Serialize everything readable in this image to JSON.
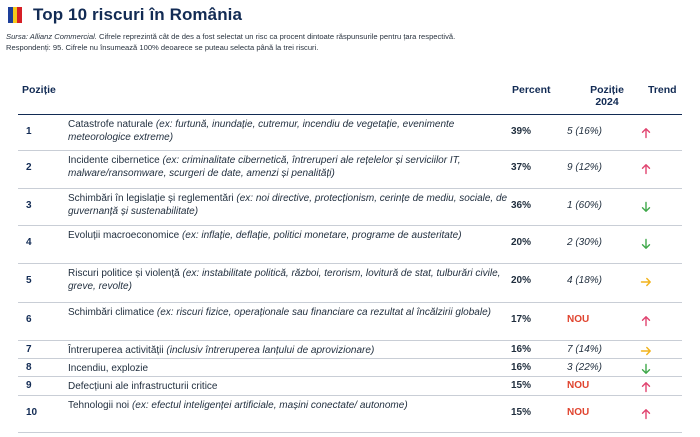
{
  "header": {
    "title": "Top 10 riscuri în România",
    "flag_colors": [
      "#1d3f9a",
      "#f6c91b",
      "#d61f26"
    ],
    "source_label": "Sursa: Allianz Commercial.",
    "source_text": " Cifrele reprezintă cât de des a fost selectat un risc ca procent dintoate răspunsurile pentru țara respectivă.",
    "respondents": "Respondenți: 95. Cifrele nu însumează 100% deoarece se puteau selecta până la trei riscuri."
  },
  "table": {
    "headers": {
      "position": "Poziție",
      "percent": "Percent",
      "position_2024_line1": "Poziție",
      "position_2024_line2": "2024",
      "trend": "Trend"
    },
    "rows": [
      {
        "rank": "1",
        "name": "Catastrofe naturale",
        "example": " (ex: furtună, inundație, cutremur, incendiu de vegetație, evenimente meteorologice extreme)",
        "percent": "39%",
        "pos2024": "5 (16%)",
        "trend": "up"
      },
      {
        "rank": "2",
        "name": "Incidente cibernetice",
        "example": " (ex: criminalitate cibernetică, întreruperi ale rețelelor și serviciilor IT, malware/ransomware, scurgeri de date, amenzi și penalități)",
        "percent": "37%",
        "pos2024": "9 (12%)",
        "trend": "up"
      },
      {
        "rank": "3",
        "name": "Schimbări în legislație și reglementări",
        "example": " (ex: noi directive, protecționism, cerințe de mediu, sociale, de guvernanță și sustenabilitate)",
        "percent": "36%",
        "pos2024": "1 (60%)",
        "trend": "down"
      },
      {
        "rank": "4",
        "name": "Evoluții macroeconomice",
        "example": " (ex: inflație, deflație, politici monetare, programe de austeritate)",
        "percent": "20%",
        "pos2024": "2 (30%)",
        "trend": "down"
      },
      {
        "rank": "5",
        "name": "Riscuri politice și violență",
        "example": " (ex: instabilitate politică, război, terorism, lovitură de stat, tulburări civile, greve, revolte)",
        "percent": "20%",
        "pos2024": "4 (18%)",
        "trend": "right"
      },
      {
        "rank": "6",
        "name": "Schimbări climatice",
        "example": " (ex: riscuri fizice, operaționale sau financiare ca rezultat al încălzirii globale)",
        "percent": "17%",
        "pos2024": "NOU",
        "trend": "up"
      },
      {
        "rank": "7",
        "name": "Întreruperea activității",
        "example": " (inclusiv întreruperea lanțului de aprovizionare)",
        "percent": "16%",
        "pos2024": "7 (14%)",
        "trend": "right"
      },
      {
        "rank": "8",
        "name": "Incendiu, explozie",
        "example": "",
        "percent": "16%",
        "pos2024": "3 (22%)",
        "trend": "down"
      },
      {
        "rank": "9",
        "name": "Defecțiuni ale infrastructurii critice",
        "example": "",
        "percent": "15%",
        "pos2024": "NOU",
        "trend": "up"
      },
      {
        "rank": "10",
        "name": "Tehnologii noi",
        "example": " (ex: efectul inteligenței artificiale, mașini conectate/ autonome)",
        "percent": "15%",
        "pos2024": "NOU",
        "trend": "up"
      }
    ]
  },
  "trend_icons": {
    "up": {
      "icon": "arrow-up-icon",
      "color": "#e0436f"
    },
    "down": {
      "icon": "arrow-down-icon",
      "color": "#3fa84a"
    },
    "right": {
      "icon": "arrow-right-icon",
      "color": "#f2b31b"
    }
  },
  "colors": {
    "nou": "#e0432e",
    "heading": "#122b54"
  }
}
